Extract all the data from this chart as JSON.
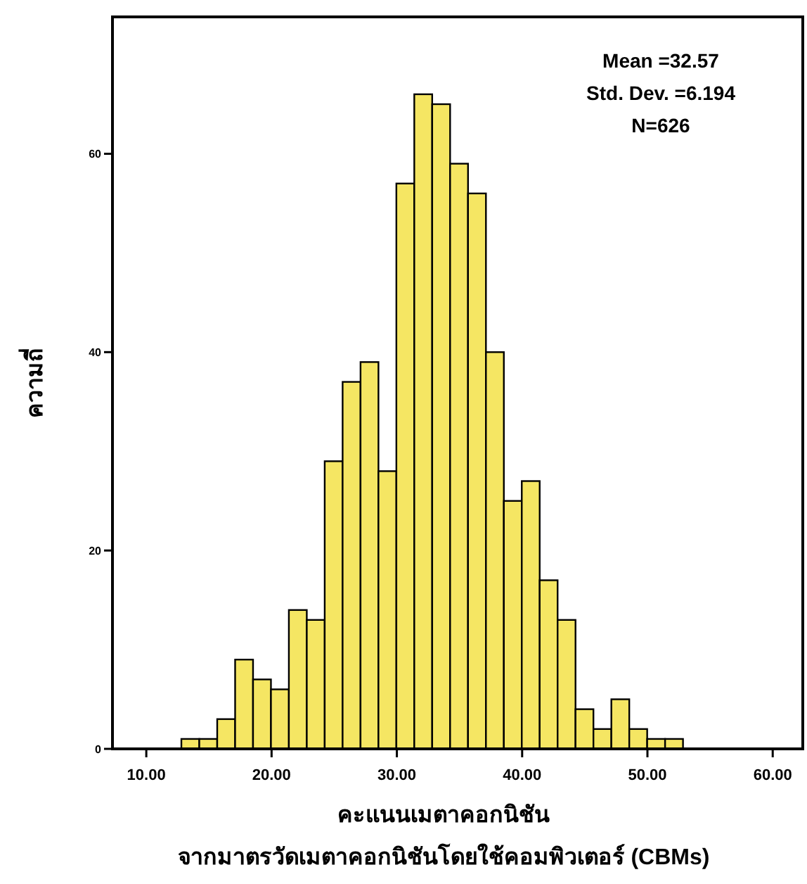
{
  "chart_data": {
    "type": "histogram",
    "xlabel": "คะแนนเมตาคอกนิชัน\nจากมาตรวัดเมตาคอกนิชันโดยใช้คอมพิวเตอร์ (CBMs)",
    "ylabel": "ความถี่",
    "bins": [
      12.8,
      14.23,
      15.66,
      17.09,
      18.52,
      19.95,
      21.38,
      22.81,
      24.24,
      25.67,
      27.1,
      28.53,
      29.96,
      31.39,
      32.82,
      34.25,
      35.68,
      37.11,
      38.54,
      39.97,
      41.4,
      42.83,
      44.26,
      45.69,
      47.12,
      48.55,
      49.98,
      51.41,
      52.84
    ],
    "values": [
      1,
      1,
      3,
      9,
      7,
      6,
      14,
      13,
      29,
      37,
      39,
      28,
      57,
      66,
      65,
      59,
      56,
      40,
      25,
      27,
      17,
      13,
      4,
      2,
      5,
      2,
      1,
      1
    ],
    "color": "#f5e663",
    "xlim": [
      7.3,
      62.4
    ],
    "ylim": [
      0,
      73.8
    ],
    "xticks": [
      {
        "value": 10,
        "label": "10.00"
      },
      {
        "value": 20,
        "label": "20.00"
      },
      {
        "value": 30,
        "label": "30.00"
      },
      {
        "value": 40,
        "label": "40.00"
      },
      {
        "value": 50,
        "label": "50.00"
      },
      {
        "value": 60,
        "label": "60.00"
      }
    ],
    "yticks": [
      0,
      20,
      40,
      60
    ],
    "annotations": [
      "Mean =32.57",
      "Std. Dev. =6.194",
      "N=626"
    ]
  }
}
